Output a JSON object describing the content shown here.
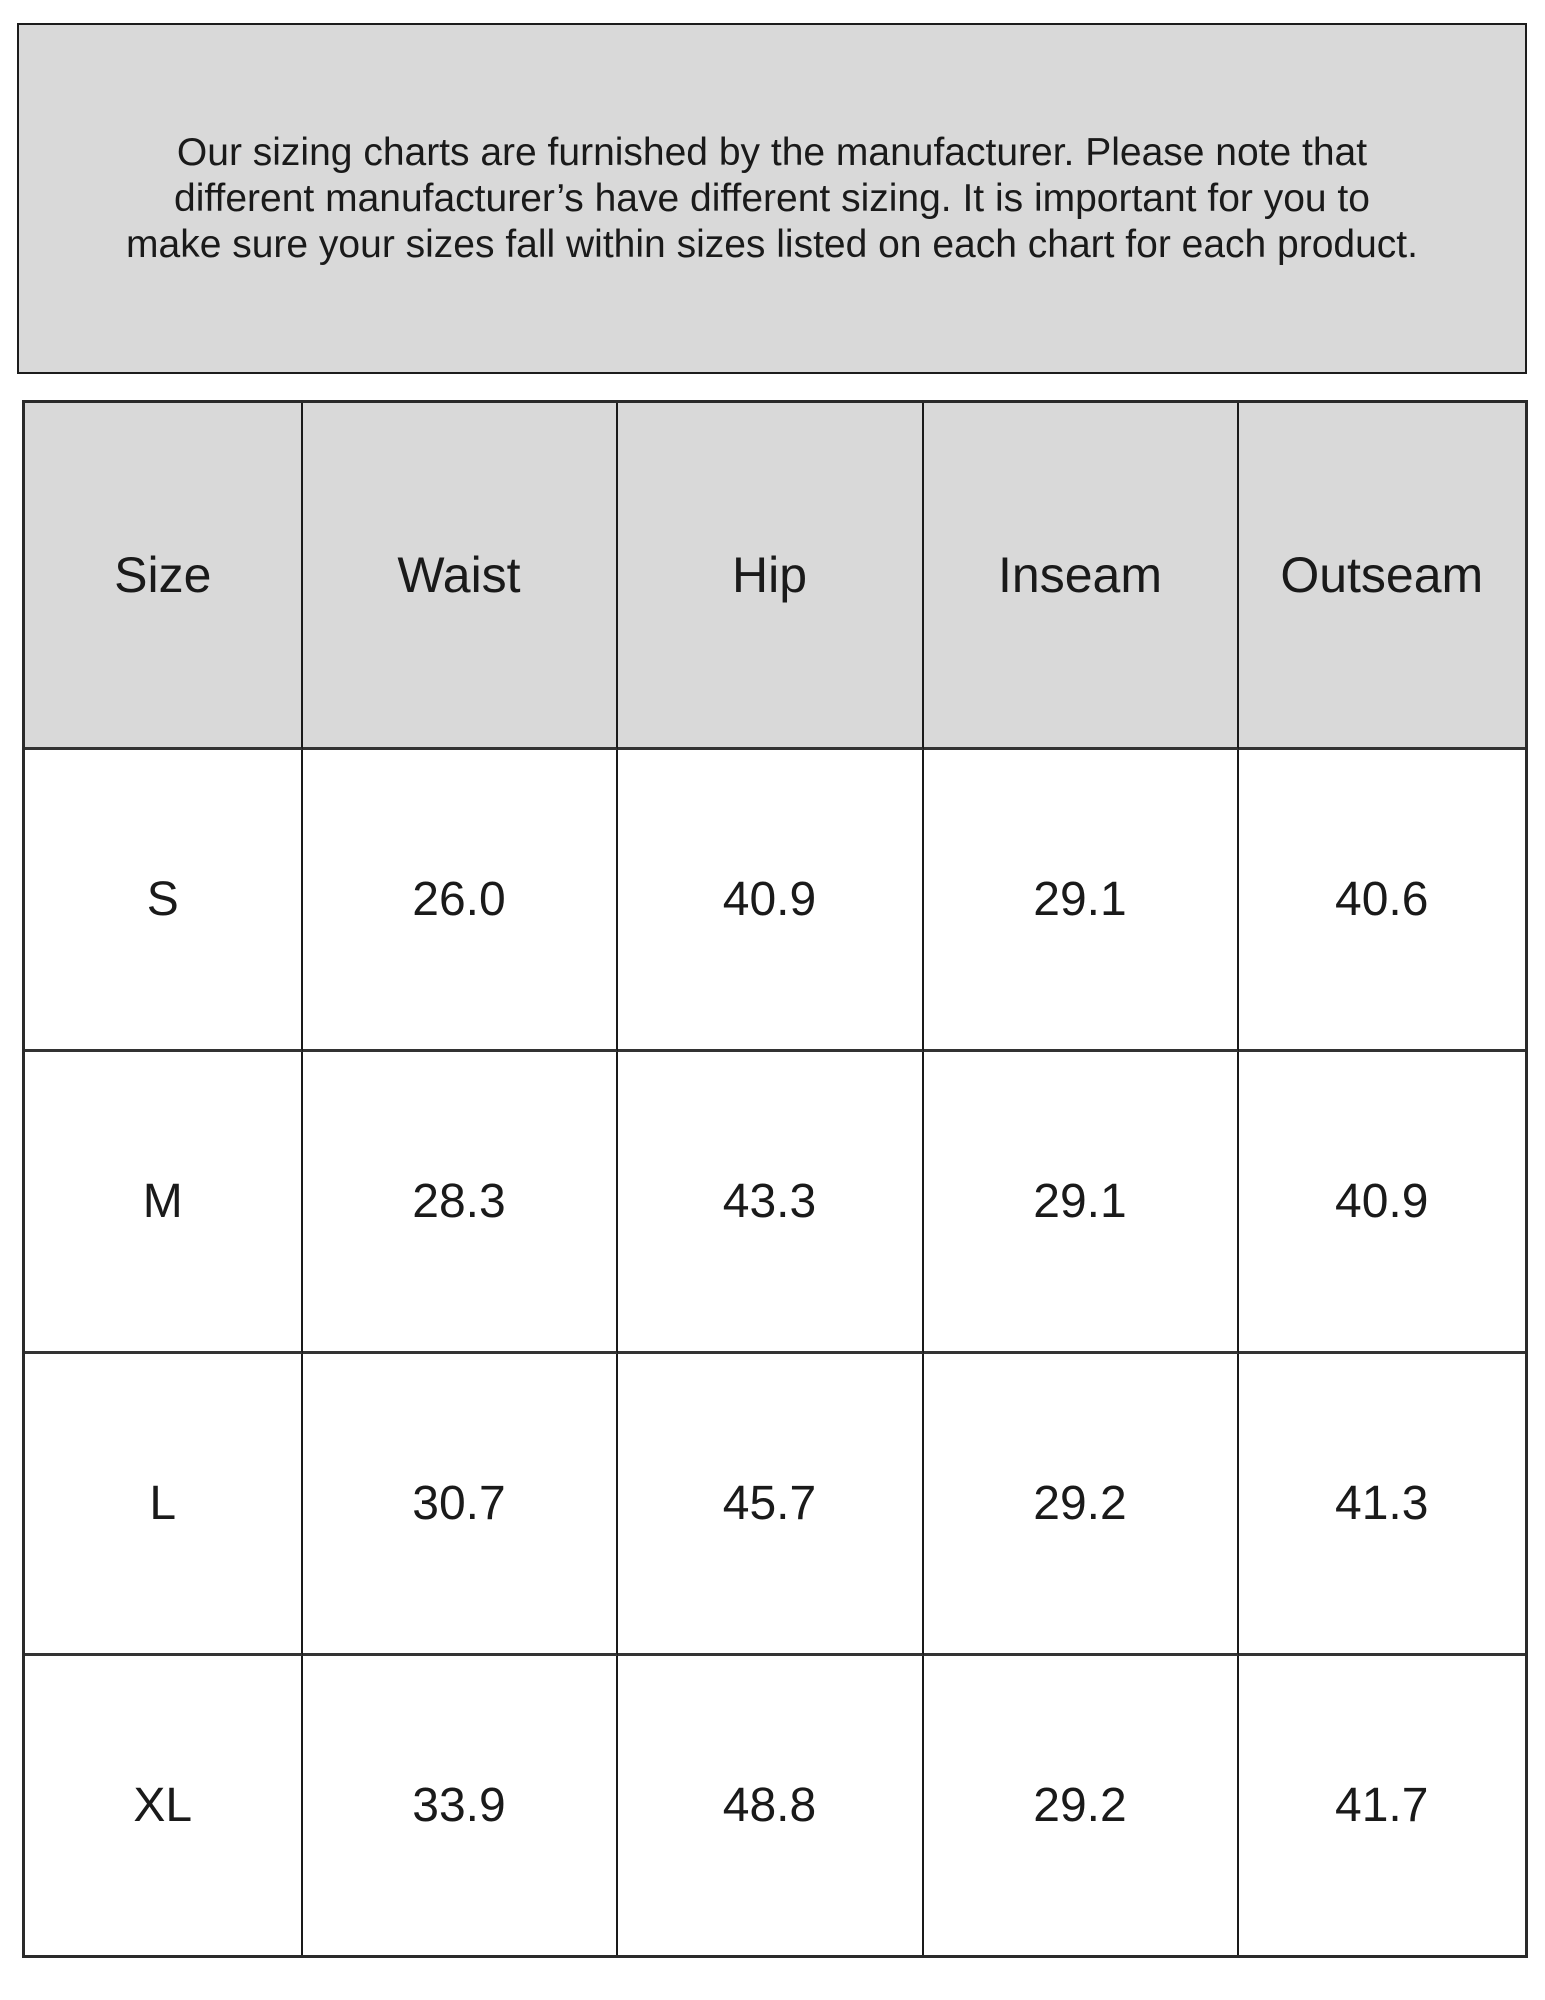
{
  "disclaimer": {
    "lines": [
      "Our sizing charts are furnished by the manufacturer. Please note that",
      "different manufacturer’s have different sizing. It is important for you to",
      "make sure your sizes fall within sizes listed on each chart for each product."
    ]
  },
  "table": {
    "columns": [
      "Size",
      "Waist",
      "Hip",
      "Inseam",
      "Outseam"
    ],
    "rows": [
      [
        "S",
        "26.0",
        "40.9",
        "29.1",
        "40.6"
      ],
      [
        "M",
        "28.3",
        "43.3",
        "29.1",
        "40.9"
      ],
      [
        "L",
        "30.7",
        "45.7",
        "29.2",
        "41.3"
      ],
      [
        "XL",
        "33.9",
        "48.8",
        "29.2",
        "41.7"
      ]
    ]
  },
  "colors": {
    "panel_background": "#d9d9d9",
    "header_background": "#d9d9d9",
    "body_background": "#ffffff",
    "border_dark": "#1c1c1c",
    "grid_line": "#333333",
    "text": "#1a1a1a"
  },
  "chart_data": {
    "type": "table",
    "title": "Garment sizing chart",
    "columns": [
      "Size",
      "Waist",
      "Hip",
      "Inseam",
      "Outseam"
    ],
    "rows": [
      {
        "Size": "S",
        "Waist": 26.0,
        "Hip": 40.9,
        "Inseam": 29.1,
        "Outseam": 40.6
      },
      {
        "Size": "M",
        "Waist": 28.3,
        "Hip": 43.3,
        "Inseam": 29.1,
        "Outseam": 40.9
      },
      {
        "Size": "L",
        "Waist": 30.7,
        "Hip": 45.7,
        "Inseam": 29.2,
        "Outseam": 41.3
      },
      {
        "Size": "XL",
        "Waist": 33.9,
        "Hip": 48.8,
        "Inseam": 29.2,
        "Outseam": 41.7
      }
    ]
  }
}
